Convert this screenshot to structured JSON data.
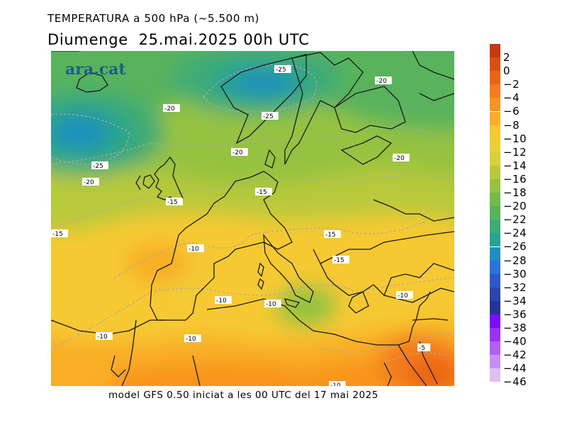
{
  "title": "TEMPERATURA a 500 hPa (~5.500 m)",
  "subtitle": "Diumenge  25.mai.2025 00h UTC",
  "brand": "ara.cat",
  "footer": "model GFS 0.50 iniciat a les 00 UTC del 17 mai 2025",
  "colorbar": {
    "labels": [
      "2",
      "0",
      "−2",
      "−4",
      "−6",
      "−8",
      "−10",
      "−12",
      "−14",
      "−16",
      "−18",
      "−20",
      "−22",
      "−24",
      "−26",
      "−28",
      "−30",
      "−32",
      "−34",
      "−36",
      "−38",
      "−40",
      "−42",
      "−44",
      "−46"
    ],
    "colors": [
      "#c53a12",
      "#d84f12",
      "#ea6418",
      "#f47b1e",
      "#f8941f",
      "#f9ae28",
      "#f6c933",
      "#eccf35",
      "#d7d038",
      "#b8c93b",
      "#95c23f",
      "#73bb4b",
      "#58b35b",
      "#3fab74",
      "#27a48f",
      "#1f8fc1",
      "#2b73d8",
      "#2e58c4",
      "#2b45ab",
      "#253496",
      "#7b0cf8",
      "#9a34f2",
      "#b061ef",
      "#c88ef0",
      "#dfbef4"
    ]
  },
  "contour_labels": [
    "-25",
    "-20",
    "-20",
    "-25",
    "-25",
    "-20",
    "-20",
    "-20",
    "-15",
    "-15",
    "-15",
    "-15",
    "-10",
    "-15",
    "-10",
    "-10",
    "-10",
    "-10",
    "-10",
    "-10",
    "-5"
  ],
  "map_colors": {
    "land_outline": "#1a1a1a",
    "contour_line": "#a9a9a9"
  }
}
